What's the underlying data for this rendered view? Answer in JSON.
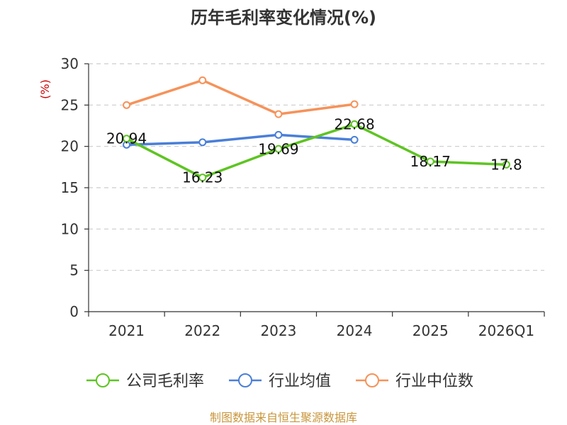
{
  "chart_data": {
    "type": "line",
    "title": "历年毛利率变化情况(%)",
    "ylabel": "(%)",
    "xlabel": "",
    "categories": [
      "2021",
      "2022",
      "2023",
      "2024",
      "2025",
      "2026Q1"
    ],
    "ylim": [
      0,
      30
    ],
    "yticks": [
      0,
      5,
      10,
      15,
      20,
      25,
      30
    ],
    "grid": true,
    "legend_position": "bottom",
    "series": [
      {
        "name": "公司毛利率",
        "color": "#5ec422",
        "values": [
          20.94,
          16.23,
          19.69,
          22.68,
          18.17,
          17.8
        ],
        "labels": [
          "20.94",
          "16.23",
          "19.69",
          "22.68",
          "18.17",
          "17.8"
        ]
      },
      {
        "name": "行业均值",
        "color": "#4a7fd8",
        "values": [
          20.2,
          20.5,
          21.4,
          20.8,
          null,
          null
        ]
      },
      {
        "name": "行业中位数",
        "color": "#f6925a",
        "values": [
          25.0,
          28.0,
          23.9,
          25.1,
          null,
          null
        ]
      }
    ]
  },
  "footer": {
    "source": "制图数据来自恒生聚源数据库"
  },
  "colors": {
    "unit_label": "#cc0000",
    "source": "#c8963c",
    "axis": "#333333",
    "grid": "#cccccc"
  }
}
